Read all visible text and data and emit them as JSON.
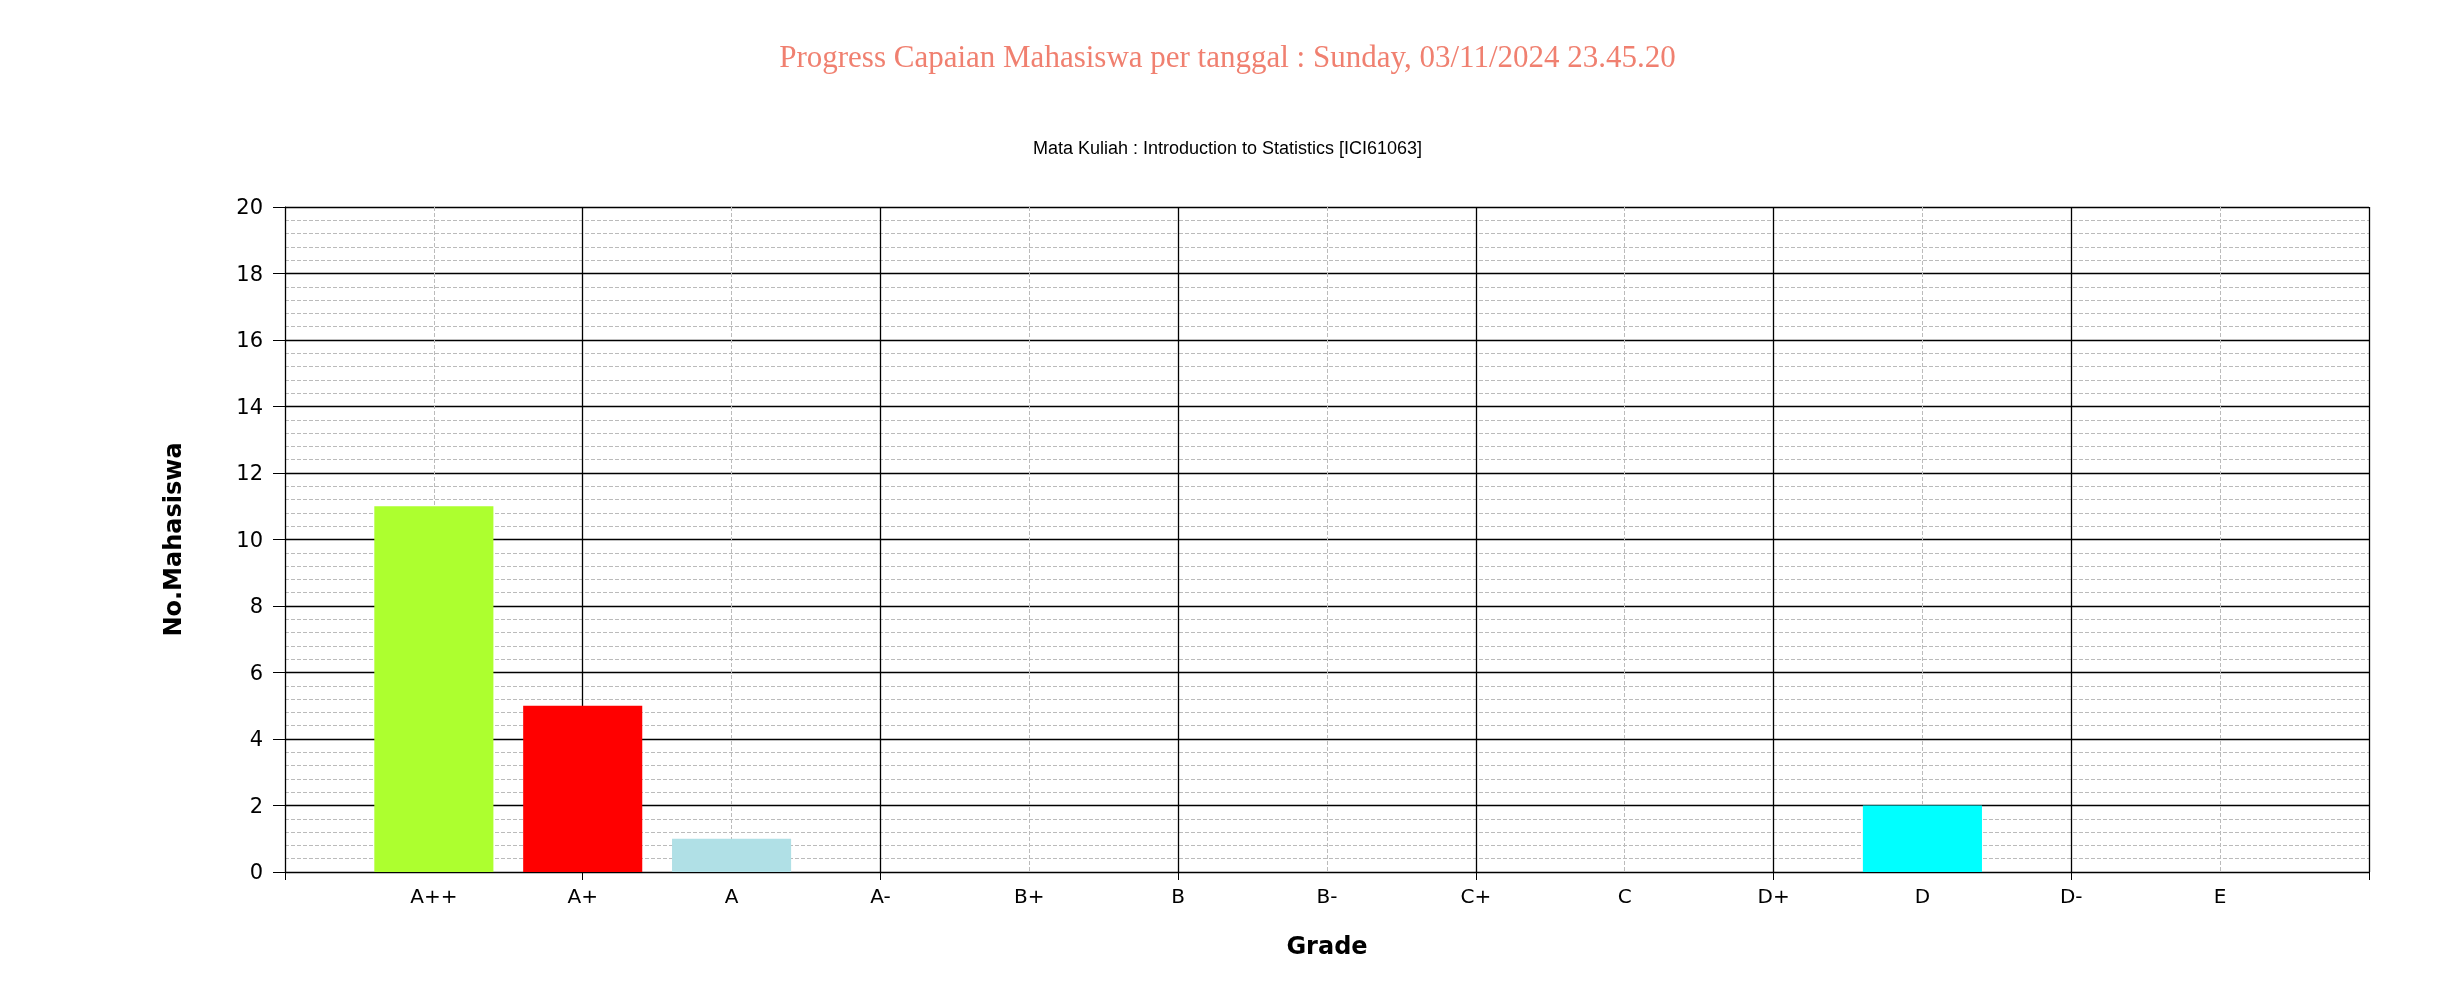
{
  "chart_data": {
    "type": "bar",
    "title": "Progress Capaian Mahasiswa per tanggal : Sunday, 03/11/2024 23.45.20",
    "subtitle": "Mata Kuliah : Introduction to Statistics [ICI61063]",
    "xlabel": "Grade",
    "ylabel": "No.Mahasiswa",
    "categories": [
      "A++",
      "A+",
      "A",
      "A-",
      "B+",
      "B",
      "B-",
      "C+",
      "C",
      "D+",
      "D",
      "D-",
      "E"
    ],
    "values": [
      11,
      5,
      1,
      0,
      0,
      0,
      0,
      0,
      0,
      0,
      2,
      0,
      0
    ],
    "colors": [
      "#adff2f",
      "#ff0000",
      "#b0e0e6",
      null,
      null,
      null,
      null,
      null,
      null,
      null,
      "#00ffff",
      null,
      null
    ],
    "ylim": [
      0,
      20
    ],
    "yticks": [
      0,
      2,
      4,
      6,
      8,
      10,
      12,
      14,
      16,
      18,
      20
    ],
    "grid": true
  }
}
